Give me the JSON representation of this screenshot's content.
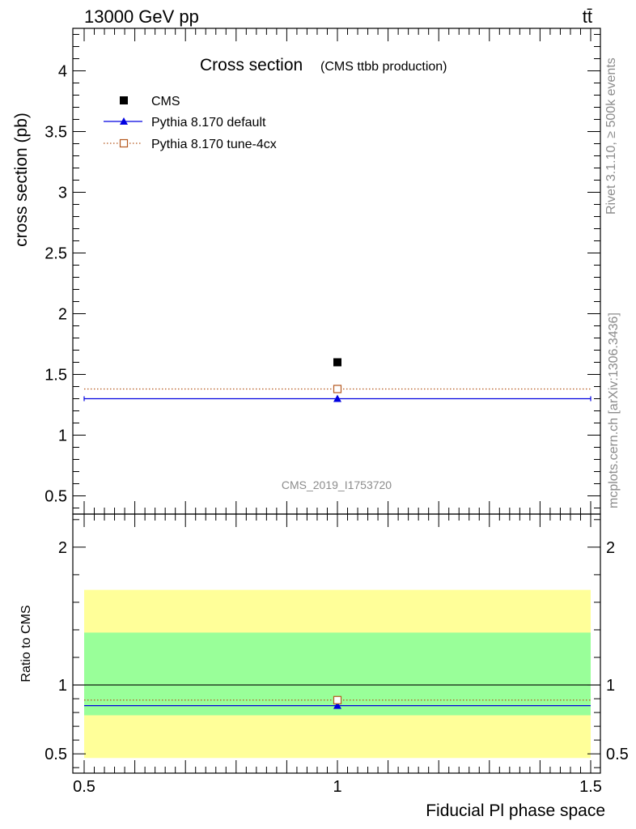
{
  "header": {
    "energy_label": "13000 GeV pp",
    "process_label": "tt̄"
  },
  "side_labels": {
    "rivet": "Rivet 3.1.10, ≥ 500k events",
    "mcplots": "mcplots.cern.ch [arXiv:1306.3436]"
  },
  "chart_data": [
    {
      "type": "scatter",
      "title": "Cross section",
      "subtitle": "(CMS ttbb production)",
      "ylabel": "cross section (pb)",
      "xlabel": "",
      "xlim": [
        0.5,
        1.5
      ],
      "ylim": [
        0.35,
        4.35
      ],
      "yticks": [
        0.5,
        1,
        1.5,
        2,
        2.5,
        3,
        3.5,
        4
      ],
      "ytick_labels": [
        "0.5",
        "1",
        "1.5",
        "2",
        "2.5",
        "3",
        "3.5",
        "4"
      ],
      "watermark": "CMS_2019_I1753720",
      "legend_position": "top-left",
      "series": [
        {
          "name": "CMS",
          "x": [
            1.0
          ],
          "y": [
            1.6
          ],
          "color": "#000000",
          "marker": "square-filled"
        },
        {
          "name": "Pythia 8.170 default",
          "x": [
            1.0
          ],
          "y": [
            1.3
          ],
          "color": "#0000e0",
          "marker": "triangle-filled",
          "line": "solid"
        },
        {
          "name": "Pythia 8.170 tune-4cx",
          "x": [
            1.0
          ],
          "y": [
            1.38
          ],
          "color": "#b4581e",
          "marker": "square-open",
          "line": "dotted"
        }
      ]
    },
    {
      "type": "line",
      "ylabel": "Ratio to CMS",
      "xlabel": "Fiducial Pl phase space",
      "xlim": [
        0.5,
        1.5
      ],
      "ylim": [
        0.36,
        2.24
      ],
      "yticks": [
        0.5,
        1,
        2
      ],
      "ytick_labels": [
        "0.5",
        "1",
        "2"
      ],
      "xticks": [
        0.5,
        1,
        1.5
      ],
      "xtick_labels": [
        "0.5",
        "1",
        "1.5"
      ],
      "bands": [
        {
          "kind": "outer",
          "low": 0.47,
          "high": 1.69,
          "color": "#ffff99"
        },
        {
          "kind": "inner",
          "low": 0.78,
          "high": 1.38,
          "color": "#99ff99"
        }
      ],
      "reference": 1.0,
      "series": [
        {
          "name": "Pythia 8.170 default",
          "x": [
            1.0
          ],
          "y": [
            0.85
          ],
          "color": "#0000e0",
          "marker": "triangle-filled",
          "line": "solid"
        },
        {
          "name": "Pythia 8.170 tune-4cx",
          "x": [
            1.0
          ],
          "y": [
            0.89
          ],
          "color": "#b4581e",
          "marker": "square-open",
          "line": "dotted"
        }
      ]
    }
  ]
}
